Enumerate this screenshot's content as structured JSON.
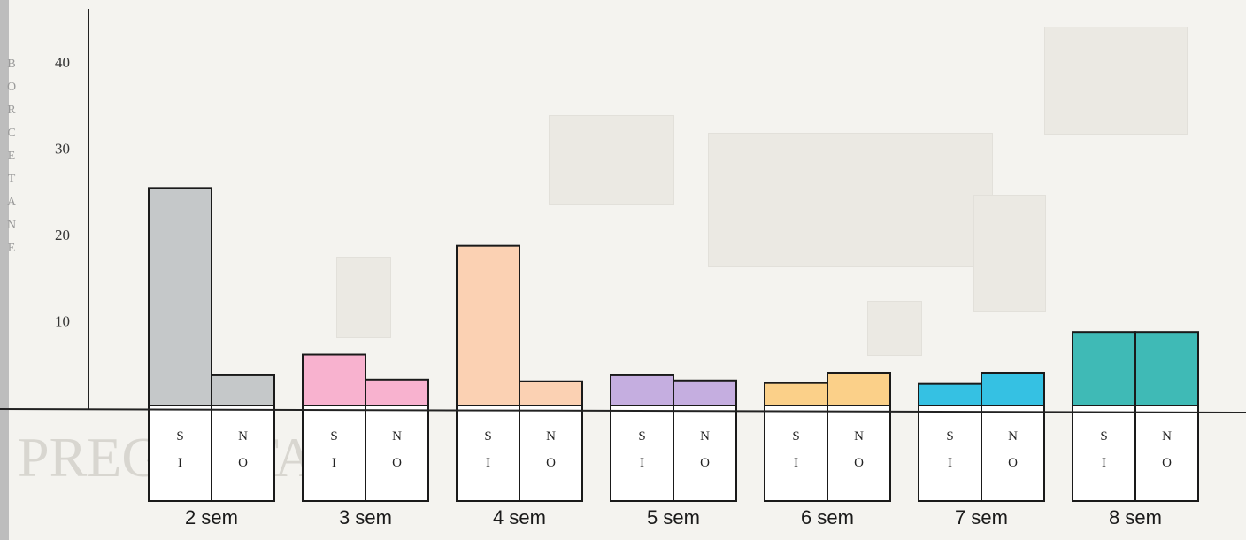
{
  "chart_data": {
    "type": "bar",
    "title": "",
    "xlabel": "",
    "ylabel": "",
    "ylim": [
      0,
      40
    ],
    "yticks": [
      10,
      20,
      30,
      40
    ],
    "ytick_labels": [
      "10",
      "20",
      "30",
      "40"
    ],
    "categories": [
      "2 sem",
      "3 sem",
      "4 sem",
      "5 sem",
      "6 sem",
      "7 sem",
      "8 sem"
    ],
    "series": [
      {
        "name": "SI",
        "box_letters": [
          "S",
          "I"
        ],
        "values": [
          25.4,
          6.1,
          18.7,
          3.7,
          2.8,
          2.7,
          8.7
        ]
      },
      {
        "name": "NO",
        "box_letters": [
          "N",
          "O"
        ],
        "values": [
          3.7,
          3.2,
          3.0,
          3.1,
          4.0,
          4.0,
          8.7
        ]
      }
    ],
    "colors": [
      "#c5c8c9",
      "#f8b2cf",
      "#fbd1b3",
      "#c5aee0",
      "#fbd089",
      "#35c1e3",
      "#3fbab6"
    ],
    "grid": false,
    "legend": "none"
  },
  "background": {
    "bleed_word": "PREGUNTA"
  },
  "left_margin_letters": [
    "B",
    "O",
    "R",
    "C",
    "E",
    "T",
    "A",
    "N",
    "E"
  ]
}
